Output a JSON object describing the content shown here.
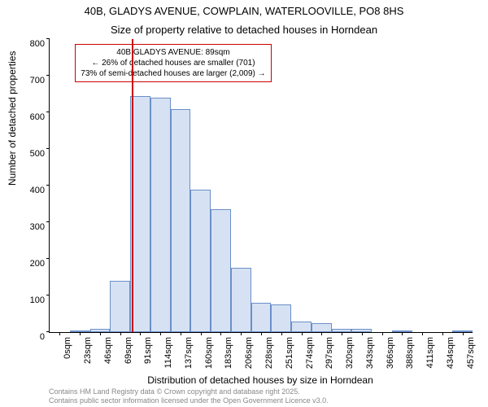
{
  "title_line1": "40B, GLADYS AVENUE, COWPLAIN, WATERLOOVILLE, PO8 8HS",
  "title_line2": "Size of property relative to detached houses in Horndean",
  "chart": {
    "type": "histogram",
    "y_label": "Number of detached properties",
    "x_label": "Distribution of detached houses by size in Horndean",
    "ylim": [
      0,
      800
    ],
    "ytick_step": 100,
    "x_ticks": [
      "0sqm",
      "23sqm",
      "46sqm",
      "69sqm",
      "91sqm",
      "114sqm",
      "137sqm",
      "160sqm",
      "183sqm",
      "206sqm",
      "228sqm",
      "251sqm",
      "274sqm",
      "297sqm",
      "320sqm",
      "343sqm",
      "366sqm",
      "388sqm",
      "411sqm",
      "434sqm",
      "457sqm"
    ],
    "bar_color_fill": "#d6e2f3",
    "bar_color_stroke": "#6b8fc9",
    "background_color": "#ffffff",
    "axis_color": "#000000",
    "values": [
      0,
      5,
      10,
      140,
      645,
      640,
      610,
      390,
      335,
      175,
      80,
      75,
      30,
      25,
      10,
      8,
      0,
      5,
      0,
      0,
      3
    ],
    "marker": {
      "color": "#cc0000",
      "x_position_sqm": 89,
      "line1": "40B GLADYS AVENUE: 89sqm",
      "line2": "← 26% of detached houses are smaller (701)",
      "line3": "73% of semi-detached houses are larger (2,009) →"
    }
  },
  "footer_line1": "Contains HM Land Registry data © Crown copyright and database right 2025.",
  "footer_line2": "Contains public sector information licensed under the Open Government Licence v3.0."
}
